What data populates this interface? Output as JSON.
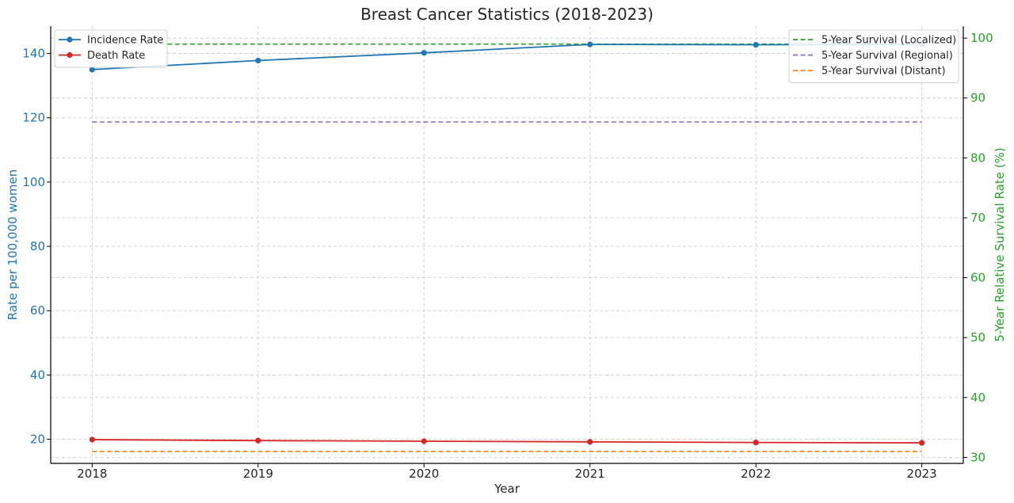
{
  "chart_data": {
    "type": "line",
    "title": "Breast Cancer Statistics (2018-2023)",
    "xlabel": "Year",
    "ylabel_left": "Rate per 100,000 women",
    "ylabel_right": "5-Year Relative Survival Rate (%)",
    "x": [
      2018,
      2019,
      2020,
      2021,
      2022,
      2023
    ],
    "xlim": [
      2017.75,
      2023.25
    ],
    "ylim_left": [
      12.5,
      148.5
    ],
    "ylim_right": [
      29.0,
      102.0
    ],
    "yticks_left": [
      20,
      40,
      60,
      80,
      100,
      120,
      140
    ],
    "yticks_right": [
      30,
      40,
      50,
      60,
      70,
      80,
      90,
      100
    ],
    "grid": true,
    "series": [
      {
        "name": "Incidence Rate",
        "axis": "left",
        "style": "solid",
        "marker": "circle",
        "color": "#1f77b4",
        "values": [
          135.0,
          137.8,
          140.2,
          142.8,
          142.7,
          142.8
        ]
      },
      {
        "name": "Death Rate",
        "axis": "left",
        "style": "solid",
        "marker": "circle",
        "color": "#d62728",
        "values": [
          19.9,
          19.6,
          19.4,
          19.2,
          19.0,
          18.9
        ]
      },
      {
        "name": "5-Year Survival (Localized)",
        "axis": "right",
        "style": "dashed",
        "color": "#2ca02c",
        "values": [
          99,
          99,
          99,
          99,
          99,
          99
        ]
      },
      {
        "name": "5-Year Survival (Regional)",
        "axis": "right",
        "style": "dashed",
        "color": "#9467bd",
        "values": [
          86,
          86,
          86,
          86,
          86,
          86
        ]
      },
      {
        "name": "5-Year Survival (Distant)",
        "axis": "right",
        "style": "dashed",
        "color": "#ff7f0e",
        "values": [
          31,
          31,
          31,
          31,
          31,
          31
        ]
      }
    ],
    "legend_left": {
      "placement": "top-left",
      "entries": [
        "Incidence Rate",
        "Death Rate"
      ]
    },
    "legend_right": {
      "placement": "top-right",
      "entries": [
        "5-Year Survival (Localized)",
        "5-Year Survival (Regional)",
        "5-Year Survival (Distant)"
      ]
    }
  }
}
